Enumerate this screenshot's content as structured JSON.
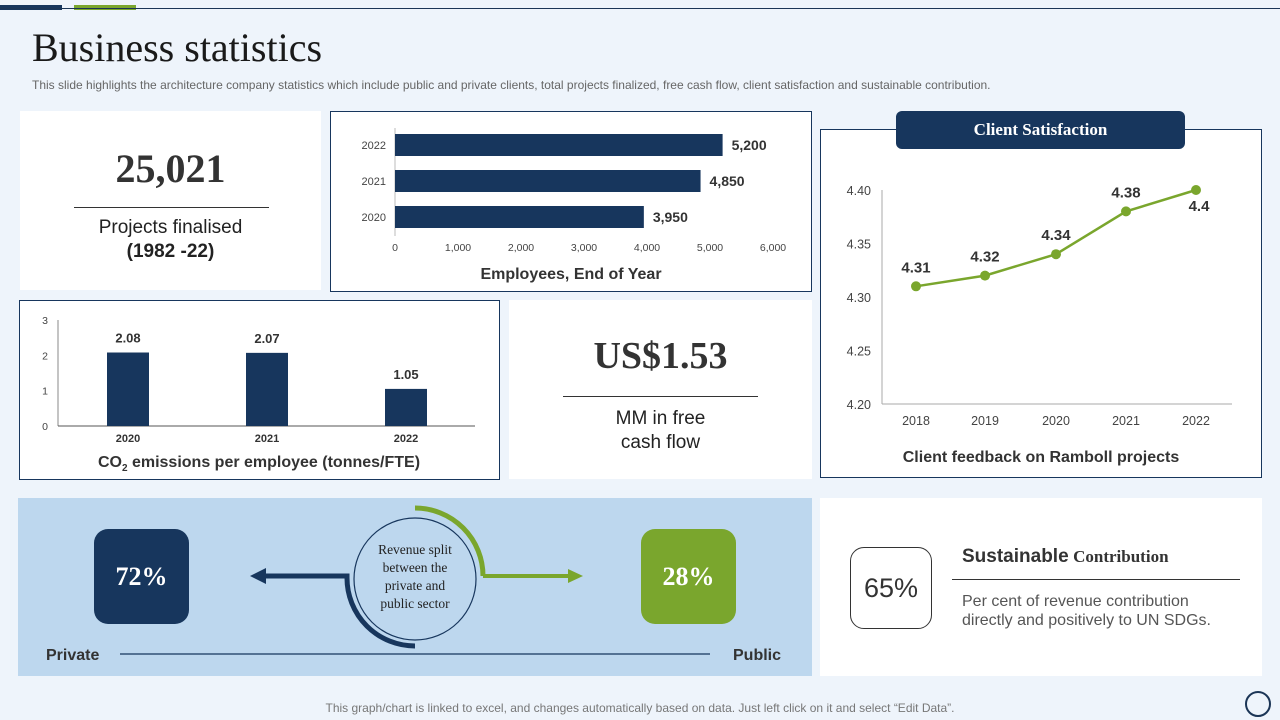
{
  "title": "Business statistics",
  "subtitle": "This slide highlights the architecture company statistics which include public and private clients, total projects finalized, free cash flow, client satisfaction and sustainable contribution.",
  "projects": {
    "value": "25,021",
    "label_line1": "Projects finalised",
    "label_line2": "(1982 -22)"
  },
  "cash_flow": {
    "value": "US$1.53",
    "label_line1": "MM in free",
    "label_line2": "cash flow"
  },
  "revenue_split": {
    "private_value": "72%",
    "public_value": "28%",
    "private_label": "Private",
    "public_label": "Public",
    "center_line1": "Revenue split",
    "center_line2": "between the",
    "center_line3": "private and",
    "center_line4": "public sector"
  },
  "sustainable": {
    "value": "65%",
    "title_main": "Sustainable",
    "title_rest": "Contribution",
    "desc_line1": "Per cent of revenue contribution",
    "desc_line2": "directly and positively to UN SDGs."
  },
  "footer": "This graph/chart is linked to excel,  and changes automatically based on data. Just left click on it and select “Edit Data”.",
  "colors": {
    "navy": "#17365d",
    "green": "#7aa62d",
    "light_blue": "#bdd7ee"
  },
  "chart_data": [
    {
      "type": "bar",
      "orientation": "horizontal",
      "title": "Employees, End of Year",
      "categories": [
        "2022",
        "2021",
        "2020"
      ],
      "values": [
        5200,
        4850,
        3950
      ],
      "value_labels": [
        "5,200",
        "4,850",
        "3,950"
      ],
      "xlim": [
        0,
        6000
      ],
      "xticks": [
        "0",
        "1,000",
        "2,000",
        "3,000",
        "4,000",
        "5,000",
        "6,000"
      ]
    },
    {
      "type": "bar",
      "title_prefix": "CO",
      "title_sub": "2",
      "title_suffix": " emissions per employee (tonnes/FTE)",
      "categories": [
        "2020",
        "2021",
        "2022"
      ],
      "values": [
        2.08,
        2.07,
        1.05
      ],
      "value_labels": [
        "2.08",
        "2.07",
        "1.05"
      ],
      "ylim": [
        0,
        3
      ],
      "yticks": [
        "0",
        "1",
        "2",
        "3"
      ]
    },
    {
      "type": "line",
      "header": "Client Satisfaction",
      "title": "Client feedback on Ramboll projects",
      "x": [
        "2018",
        "2019",
        "2020",
        "2021",
        "2022"
      ],
      "y": [
        4.31,
        4.32,
        4.34,
        4.38,
        4.4
      ],
      "point_labels": [
        "4.31",
        "4.32",
        "4.34",
        "4.38",
        "4.4"
      ],
      "ylim": [
        4.2,
        4.4
      ],
      "yticks": [
        "4.20",
        "4.25",
        "4.30",
        "4.35",
        "4.40"
      ]
    }
  ]
}
